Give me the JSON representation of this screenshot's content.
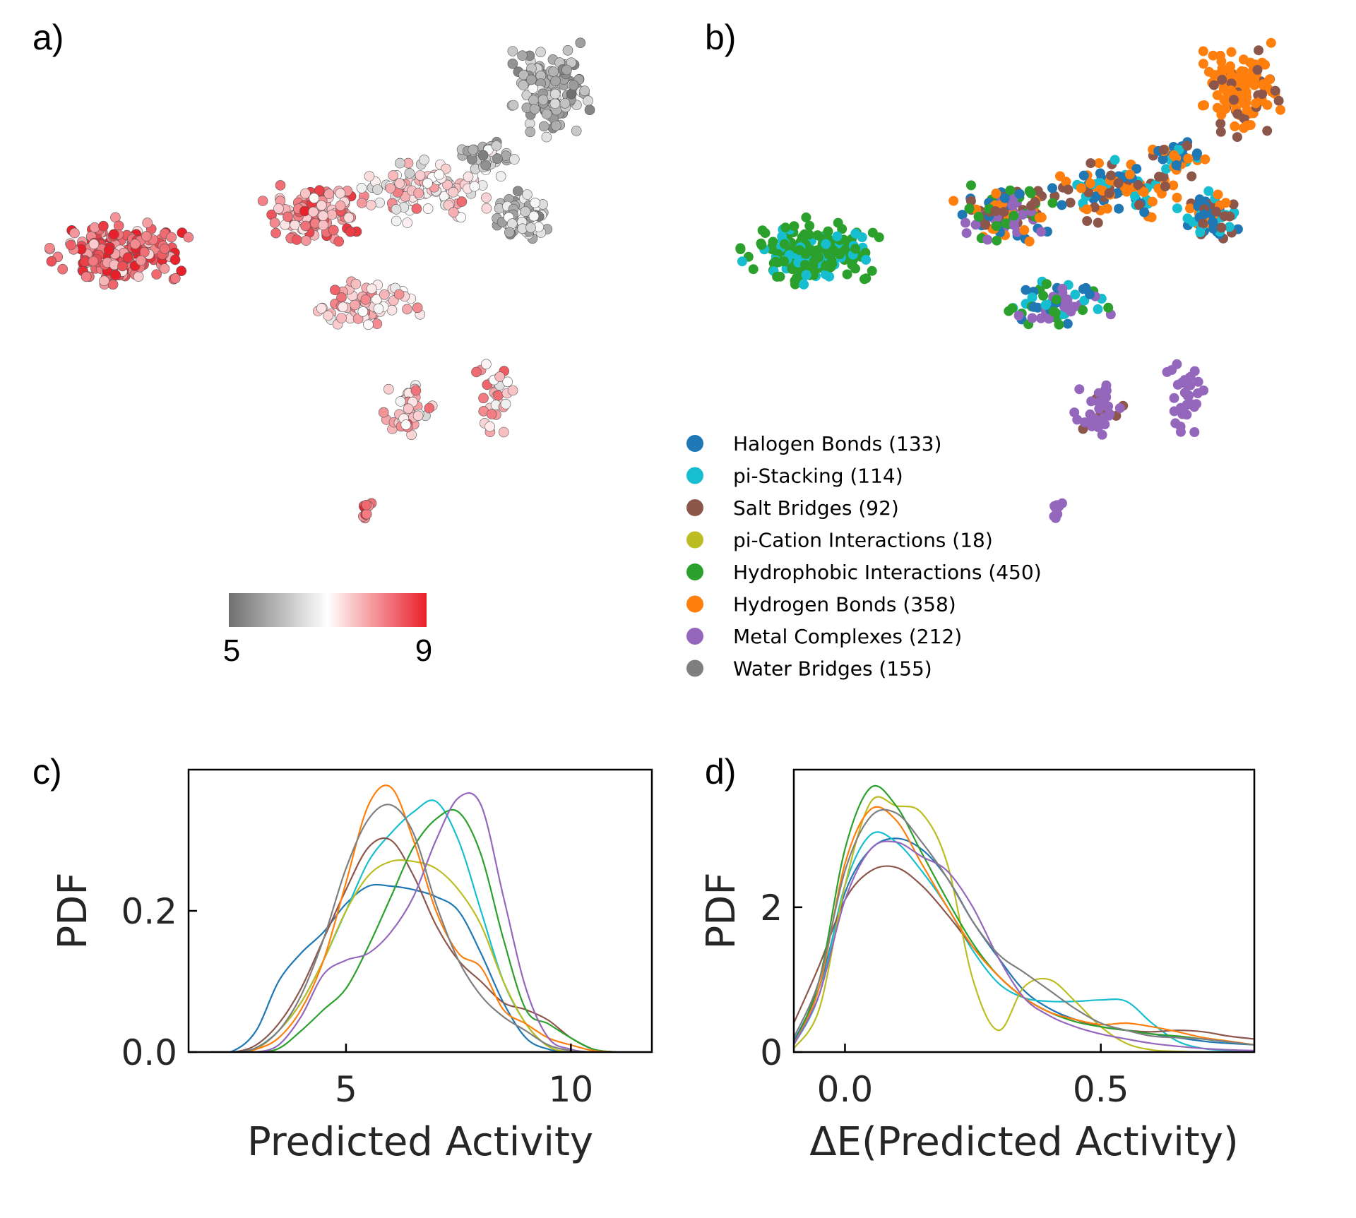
{
  "colors": {
    "halogen": "#1f77b4",
    "pistack": "#17becf",
    "salt": "#8c564b",
    "pication": "#bcbd22",
    "hydrophobic": "#2ca02c",
    "hbond": "#ff7f0e",
    "metal": "#9467bd",
    "water": "#7f7f7f"
  },
  "panels": {
    "a": {
      "label": "a)"
    },
    "b": {
      "label": "b)"
    },
    "c": {
      "label": "c)"
    },
    "d": {
      "label": "d)"
    }
  },
  "colorbar": {
    "min_label": "5",
    "max_label": "9",
    "range": [
      5,
      9
    ],
    "cmap": [
      "#707070",
      "#ffffff",
      "#e8202a"
    ]
  },
  "legend": [
    {
      "key": "halogen",
      "label": "Halogen Bonds (133)"
    },
    {
      "key": "pistack",
      "label": "pi-Stacking (114)"
    },
    {
      "key": "salt",
      "label": "Salt Bridges (92)"
    },
    {
      "key": "pication",
      "label": "pi-Cation Interactions (18)"
    },
    {
      "key": "hydrophobic",
      "label": "Hydrophobic Interactions (450)"
    },
    {
      "key": "hbond",
      "label": "Hydrogen Bonds (358)"
    },
    {
      "key": "metal",
      "label": "Metal Complexes (212)"
    },
    {
      "key": "water",
      "label": "Water Bridges (155)"
    }
  ],
  "chart_data": [
    {
      "id": "c",
      "type": "line",
      "xlabel": "Predicted Activity",
      "ylabel": "PDF",
      "xlim": [
        1.5,
        11.8
      ],
      "ylim": [
        0,
        0.4
      ],
      "xticks": [
        5,
        10
      ],
      "xtick_labels": [
        "5",
        "10"
      ],
      "yticks": [
        0.0,
        0.2
      ],
      "ytick_labels": [
        "0.0",
        "0.2"
      ],
      "x": [
        2.0,
        2.5,
        3.0,
        3.5,
        4.0,
        4.5,
        5.0,
        5.5,
        6.0,
        6.5,
        7.0,
        7.5,
        8.0,
        8.5,
        9.0,
        9.5,
        10.0,
        10.5,
        11.0
      ],
      "series": [
        {
          "name": "Halogen Bonds (133)",
          "key": "halogen",
          "values": [
            0,
            0.002,
            0.03,
            0.1,
            0.14,
            0.17,
            0.21,
            0.235,
            0.235,
            0.23,
            0.22,
            0.2,
            0.14,
            0.07,
            0.02,
            0.004,
            0,
            0,
            0
          ]
        },
        {
          "name": "pi-Stacking (114)",
          "key": "pistack",
          "values": [
            0,
            0,
            0.006,
            0.03,
            0.07,
            0.13,
            0.2,
            0.27,
            0.31,
            0.34,
            0.355,
            0.3,
            0.2,
            0.1,
            0.04,
            0.008,
            0,
            0,
            0
          ]
        },
        {
          "name": "Salt Bridges (92)",
          "key": "salt",
          "values": [
            0,
            0,
            0.01,
            0.04,
            0.09,
            0.16,
            0.23,
            0.29,
            0.3,
            0.25,
            0.18,
            0.13,
            0.1,
            0.07,
            0.06,
            0.045,
            0.02,
            0.004,
            0
          ]
        },
        {
          "name": "pi-Cation Interactions (18)",
          "key": "pication",
          "values": [
            0,
            0,
            0.004,
            0.03,
            0.07,
            0.13,
            0.2,
            0.25,
            0.27,
            0.27,
            0.26,
            0.23,
            0.18,
            0.1,
            0.04,
            0.008,
            0,
            0,
            0
          ]
        },
        {
          "name": "Hydrophobic Interactions (450)",
          "key": "hydrophobic",
          "values": [
            0,
            0,
            0,
            0.005,
            0.03,
            0.06,
            0.09,
            0.15,
            0.22,
            0.29,
            0.33,
            0.34,
            0.28,
            0.16,
            0.06,
            0.04,
            0.02,
            0.004,
            0
          ]
        },
        {
          "name": "Hydrogen Bonds (358)",
          "key": "hbond",
          "values": [
            0,
            0,
            0.004,
            0.02,
            0.06,
            0.13,
            0.24,
            0.35,
            0.375,
            0.3,
            0.2,
            0.14,
            0.12,
            0.06,
            0.04,
            0.02,
            0.01,
            0.002,
            0
          ]
        },
        {
          "name": "Metal Complexes (212)",
          "key": "metal",
          "values": [
            0,
            0,
            0,
            0.01,
            0.05,
            0.11,
            0.13,
            0.14,
            0.17,
            0.22,
            0.3,
            0.36,
            0.35,
            0.22,
            0.09,
            0.02,
            0.004,
            0,
            0
          ]
        },
        {
          "name": "Water Bridges (155)",
          "key": "water",
          "values": [
            0,
            0,
            0.006,
            0.03,
            0.08,
            0.16,
            0.26,
            0.33,
            0.35,
            0.31,
            0.21,
            0.13,
            0.08,
            0.05,
            0.03,
            0.01,
            0.002,
            0,
            0
          ]
        }
      ]
    },
    {
      "id": "d",
      "type": "line",
      "xlabel": "ΔE(Predicted Activity)",
      "ylabel": "PDF",
      "xlim": [
        -0.1,
        0.8
      ],
      "ylim": [
        0,
        3.9
      ],
      "xticks": [
        0.0,
        0.5
      ],
      "xtick_labels": [
        "0.0",
        "0.5"
      ],
      "yticks": [
        0,
        2
      ],
      "ytick_labels": [
        "0",
        "2"
      ],
      "x": [
        -0.1,
        -0.05,
        0.0,
        0.05,
        0.1,
        0.15,
        0.2,
        0.25,
        0.3,
        0.35,
        0.4,
        0.45,
        0.5,
        0.55,
        0.6,
        0.65,
        0.7,
        0.75,
        0.8
      ],
      "series": [
        {
          "name": "Halogen Bonds (133)",
          "key": "halogen",
          "values": [
            0.15,
            0.9,
            2.2,
            2.8,
            2.95,
            2.8,
            2.4,
            1.8,
            1.3,
            0.85,
            0.6,
            0.45,
            0.35,
            0.3,
            0.25,
            0.2,
            0.15,
            0.12,
            0.1
          ]
        },
        {
          "name": "pi-Stacking (114)",
          "key": "pistack",
          "values": [
            0.1,
            0.8,
            2.3,
            3.0,
            2.9,
            2.5,
            2.0,
            1.4,
            0.95,
            0.75,
            0.7,
            0.7,
            0.72,
            0.7,
            0.4,
            0.15,
            0.05,
            0.02,
            0.01
          ]
        },
        {
          "name": "Salt Bridges (92)",
          "key": "salt",
          "values": [
            0.4,
            1.2,
            2.1,
            2.5,
            2.55,
            2.3,
            1.9,
            1.45,
            1.05,
            0.75,
            0.55,
            0.45,
            0.35,
            0.3,
            0.28,
            0.3,
            0.28,
            0.22,
            0.18
          ]
        },
        {
          "name": "pi-Cation Interactions (18)",
          "key": "pication",
          "values": [
            0.05,
            0.6,
            2.3,
            3.45,
            3.4,
            3.3,
            2.6,
            1.0,
            0.3,
            0.9,
            1.0,
            0.7,
            0.35,
            0.12,
            0.03,
            0.01,
            0,
            0,
            0
          ]
        },
        {
          "name": "Hydrophobic Interactions (450)",
          "key": "hydrophobic",
          "values": [
            0.1,
            1.0,
            2.8,
            3.65,
            3.4,
            2.75,
            2.1,
            1.5,
            1.05,
            0.75,
            0.55,
            0.42,
            0.35,
            0.3,
            0.25,
            0.22,
            0.18,
            0.14,
            0.1
          ]
        },
        {
          "name": "Hydrogen Bonds (358)",
          "key": "hbond",
          "values": [
            0.1,
            0.9,
            2.6,
            3.35,
            3.2,
            2.6,
            2.0,
            1.45,
            1.05,
            0.75,
            0.55,
            0.45,
            0.38,
            0.4,
            0.35,
            0.28,
            0.2,
            0.15,
            0.1
          ]
        },
        {
          "name": "Metal Complexes (212)",
          "key": "metal",
          "values": [
            0.1,
            0.8,
            2.1,
            2.8,
            2.9,
            2.7,
            2.5,
            2.0,
            1.3,
            0.75,
            0.5,
            0.35,
            0.25,
            0.18,
            0.12,
            0.08,
            0.05,
            0.03,
            0.02
          ]
        },
        {
          "name": "Water Bridges (155)",
          "key": "water",
          "values": [
            0.2,
            1.0,
            2.5,
            3.25,
            3.3,
            2.9,
            2.4,
            1.8,
            1.35,
            1.1,
            0.85,
            0.6,
            0.4,
            0.3,
            0.22,
            0.2,
            0.18,
            0.14,
            0.1
          ]
        }
      ]
    }
  ]
}
